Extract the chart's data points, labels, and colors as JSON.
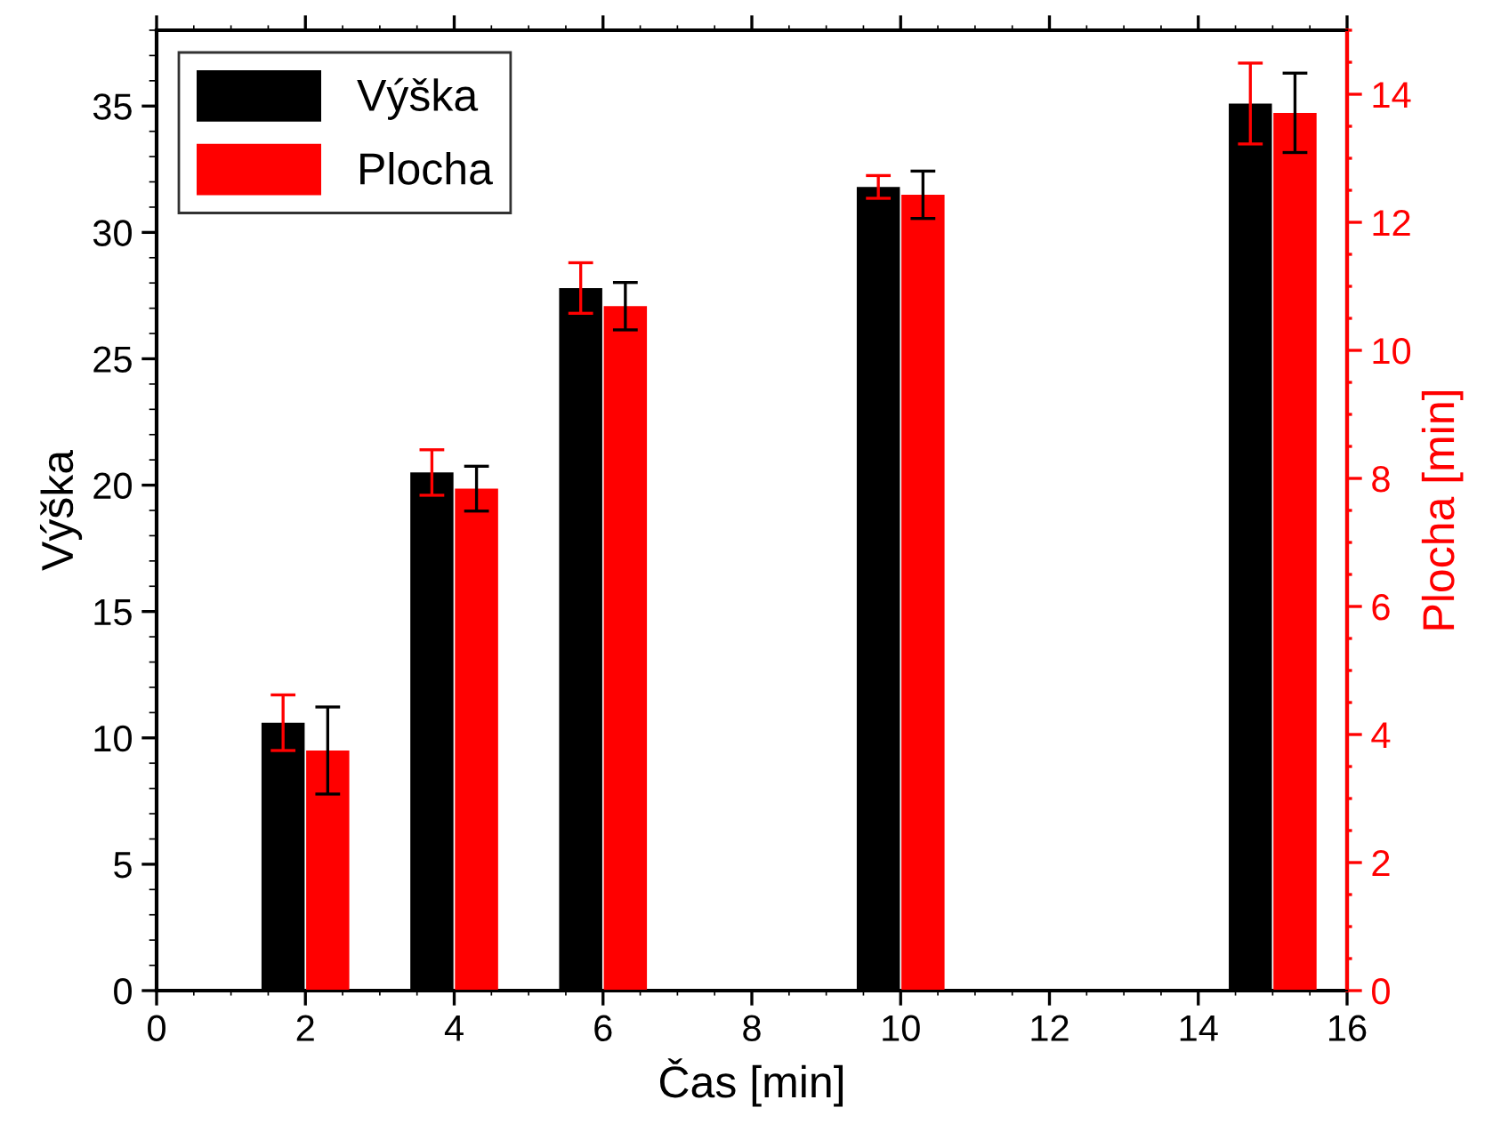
{
  "chart_data": {
    "type": "bar",
    "xlabel": "Čas [min]",
    "ylabel": "Výška",
    "y2label": "Plocha [min]",
    "x": [
      2,
      4,
      6,
      10,
      15
    ],
    "series": [
      {
        "name": "Výška",
        "color": "#000000",
        "values": [
          10.6,
          20.5,
          27.8,
          31.8,
          35.1
        ],
        "errors": [
          1.1,
          0.9,
          1.0,
          0.45,
          1.6
        ]
      },
      {
        "name": "Plocha",
        "color": "#ff0000",
        "axis": "y2",
        "values": [
          3.75,
          7.84,
          10.69,
          12.43,
          13.71
        ],
        "errors": [
          0.68,
          0.35,
          0.37,
          0.37,
          0.62
        ]
      }
    ],
    "xlim": [
      0,
      16
    ],
    "xticks": [
      0,
      2,
      4,
      6,
      8,
      10,
      12,
      14,
      16
    ],
    "ylim": [
      0,
      38
    ],
    "yticks": [
      0,
      5,
      10,
      15,
      20,
      25,
      30,
      35
    ],
    "y2lim": [
      0,
      15
    ],
    "y2ticks": [
      0,
      2,
      4,
      6,
      8,
      10,
      12,
      14
    ],
    "legend": "top left",
    "grid": false
  }
}
